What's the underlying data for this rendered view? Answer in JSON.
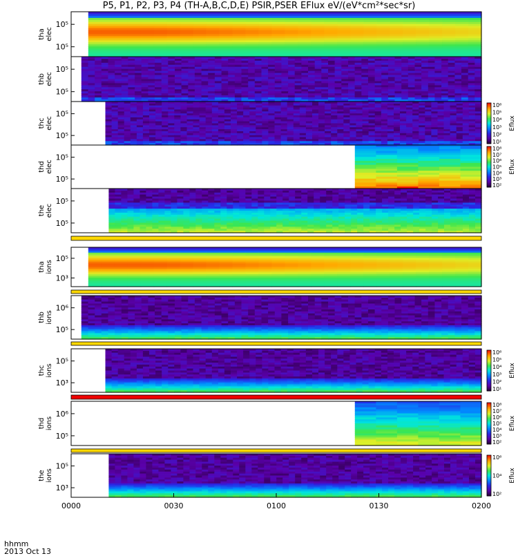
{
  "title": "P5, P1, P2, P3, P4 (TH-A,B,C,D,E) PSIR,PSER EFlux eV/(eV*cm²*sec*sr)",
  "footer": {
    "unit_label": "hhmm",
    "date_label": "2013 Oct 13"
  },
  "colors": {
    "background": "#ffffff",
    "frame": "#000000"
  },
  "chart_data": {
    "type": "heatmap",
    "xlabel": "hhmm",
    "x_ticks": [
      "0000",
      "0030",
      "0100",
      "0130",
      "0200"
    ],
    "x_range": [
      "00:00",
      "02:00"
    ],
    "panels": [
      {
        "probe_label": "tha",
        "species_label": "elec",
        "y_ticks": [
          "10⁵",
          "10⁵"
        ],
        "data_start": "00:05",
        "pattern": "hot",
        "colorbar": null
      },
      {
        "probe_label": "thb",
        "species_label": "elec",
        "y_ticks": [
          "10⁵",
          "10⁵"
        ],
        "data_start": "00:03",
        "pattern": "sparse",
        "colorbar": null
      },
      {
        "probe_label": "thc",
        "species_label": "elec",
        "y_ticks": [
          "10⁵",
          "10⁵"
        ],
        "data_start": "00:10",
        "pattern": "sparse",
        "colorbar": {
          "ticks": [
            "10⁶",
            "10⁵",
            "10⁴",
            "10³",
            "10²",
            "10¹"
          ],
          "label": "Eflux"
        }
      },
      {
        "probe_label": "thd",
        "species_label": "elec",
        "y_ticks": [
          "10⁵",
          "10⁵"
        ],
        "data_start": "01:23",
        "pattern": "blocks-elec",
        "colorbar": {
          "ticks": [
            "10⁸",
            "10⁷",
            "10⁶",
            "10⁵",
            "10⁴",
            "10³",
            "10²"
          ],
          "label": "Eflux"
        }
      },
      {
        "probe_label": "the",
        "species_label": "elec",
        "y_ticks": [
          "10⁵",
          "10⁵"
        ],
        "data_start": "00:11",
        "pattern": "band",
        "colorbar": null
      },
      {
        "probe_label": "tha",
        "species_label": "ions",
        "y_ticks": [
          "10⁵",
          "10³"
        ],
        "data_start": "00:05",
        "pattern": "hot",
        "colorbar": null
      },
      {
        "probe_label": "thb",
        "species_label": "ions",
        "y_ticks": [
          "10⁶",
          "10⁵"
        ],
        "data_start": "00:03",
        "pattern": "sparse-low",
        "colorbar": null
      },
      {
        "probe_label": "thc",
        "species_label": "ions",
        "y_ticks": [
          "10⁵",
          "10³"
        ],
        "data_start": "00:10",
        "pattern": "sparse-low",
        "colorbar": {
          "ticks": [
            "10⁶",
            "10⁵",
            "10⁴",
            "10³",
            "10²",
            "10¹"
          ],
          "label": "Eflux"
        }
      },
      {
        "probe_label": "thd",
        "species_label": "ions",
        "y_ticks": [
          "10⁶",
          "10⁵"
        ],
        "data_start": "01:23",
        "pattern": "blocks-ion",
        "colorbar": {
          "ticks": [
            "10⁸",
            "10⁷",
            "10⁶",
            "10⁵",
            "10⁴",
            "10³",
            "10²"
          ],
          "label": "Eflux"
        }
      },
      {
        "probe_label": "the",
        "species_label": "ions",
        "y_ticks": [
          "10⁵",
          "10³"
        ],
        "data_start": "00:11",
        "pattern": "sparse-low",
        "colorbar": {
          "ticks": [
            "10⁶",
            "10⁴",
            "10²"
          ],
          "label": "Eflux"
        }
      }
    ],
    "separator_bars": [
      {
        "after_panel": 5,
        "color": "#ffd800"
      },
      {
        "after_panel": 6,
        "color": "#ffd800"
      },
      {
        "after_panel": 7,
        "color": "#ffd800"
      },
      {
        "after_panel": 8,
        "color": "#ee0000"
      },
      {
        "after_panel": 9,
        "color": "#ffd800"
      }
    ]
  }
}
